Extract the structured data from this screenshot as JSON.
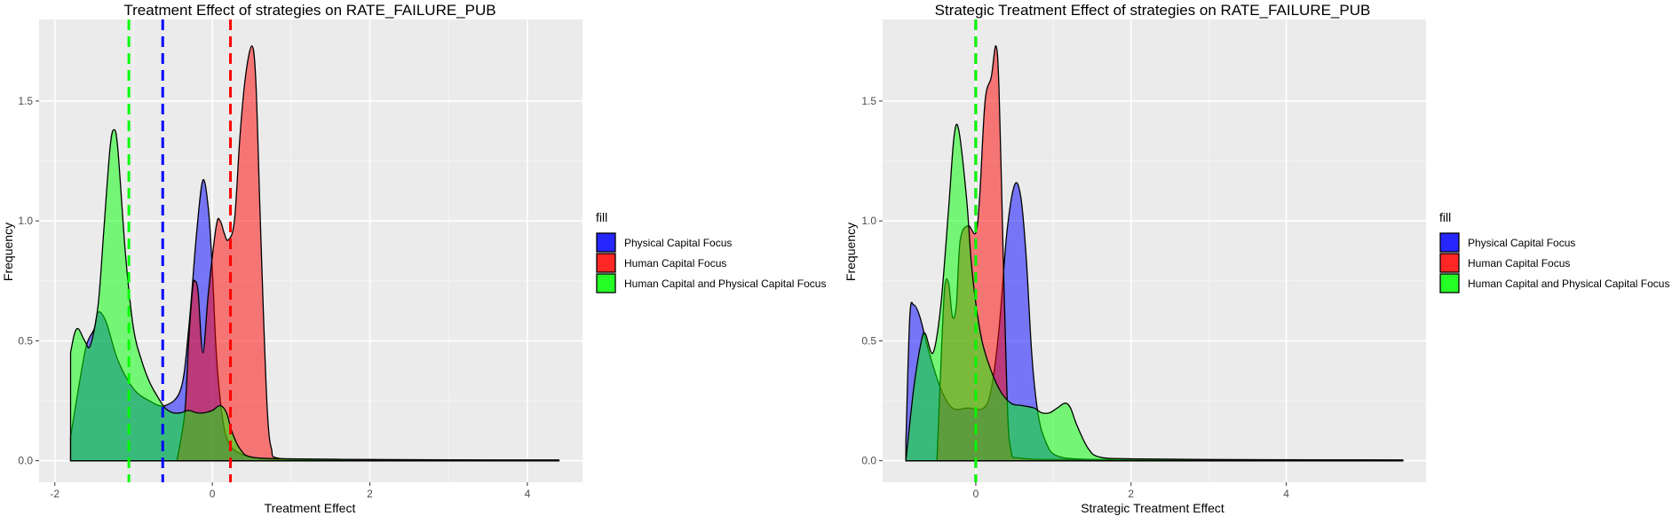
{
  "chart_data": [
    {
      "type": "area",
      "title": "Treatment Effect of strategies on RATE_FAILURE_PUB",
      "xlabel": "Treatment Effect",
      "ylabel": "Frequency",
      "xlim": [
        -2.2,
        4.7
      ],
      "ylim": [
        -0.09,
        1.84
      ],
      "x_ticks": [
        -2,
        0,
        2,
        4
      ],
      "y_ticks": [
        0.0,
        0.5,
        1.0,
        1.5
      ],
      "x_tick_labels": [
        "-2",
        "0",
        "2",
        "4"
      ],
      "y_tick_labels": [
        "0.0",
        "0.5",
        "1.0",
        "1.5"
      ],
      "grid": true,
      "legend_title": "fill",
      "legend_position": "right",
      "series": [
        {
          "name": "Physical Capital Focus",
          "color": "#0000ff",
          "mean": -0.63,
          "points": [
            [
              -1.8,
              0.1
            ],
            [
              -1.7,
              0.3
            ],
            [
              -1.6,
              0.48
            ],
            [
              -1.5,
              0.55
            ],
            [
              -1.45,
              0.62
            ],
            [
              -1.35,
              0.58
            ],
            [
              -1.2,
              0.42
            ],
            [
              -1.0,
              0.3
            ],
            [
              -0.8,
              0.25
            ],
            [
              -0.6,
              0.23
            ],
            [
              -0.4,
              0.3
            ],
            [
              -0.3,
              0.55
            ],
            [
              -0.2,
              0.95
            ],
            [
              -0.12,
              1.17
            ],
            [
              -0.05,
              1.05
            ],
            [
              0.0,
              0.8
            ],
            [
              0.05,
              0.45
            ],
            [
              0.12,
              0.2
            ],
            [
              0.2,
              0.08
            ],
            [
              0.35,
              0.03
            ],
            [
              0.6,
              0.01
            ],
            [
              1.0,
              0.005
            ],
            [
              2.0,
              0.003
            ],
            [
              3.0,
              0.002
            ],
            [
              4.4,
              0.002
            ]
          ]
        },
        {
          "name": "Human Capital Focus",
          "color": "#ff0000",
          "mean": 0.23,
          "points": [
            [
              -0.45,
              0.0
            ],
            [
              -0.35,
              0.2
            ],
            [
              -0.3,
              0.5
            ],
            [
              -0.25,
              0.72
            ],
            [
              -0.22,
              0.75
            ],
            [
              -0.18,
              0.7
            ],
            [
              -0.12,
              0.45
            ],
            [
              -0.05,
              0.7
            ],
            [
              0.05,
              0.98
            ],
            [
              0.1,
              1.0
            ],
            [
              0.15,
              0.95
            ],
            [
              0.2,
              0.92
            ],
            [
              0.28,
              1.0
            ],
            [
              0.35,
              1.35
            ],
            [
              0.42,
              1.6
            ],
            [
              0.5,
              1.73
            ],
            [
              0.55,
              1.6
            ],
            [
              0.6,
              1.1
            ],
            [
              0.65,
              0.6
            ],
            [
              0.7,
              0.2
            ],
            [
              0.75,
              0.05
            ],
            [
              0.85,
              0.01
            ],
            [
              1.5,
              0.005
            ],
            [
              2.5,
              0.003
            ],
            [
              3.5,
              0.002
            ],
            [
              4.4,
              0.002
            ]
          ]
        },
        {
          "name": "Human Capital and Physical Capital Focus",
          "color": "#00ff00",
          "mean": -1.06,
          "points": [
            [
              -1.8,
              0.45
            ],
            [
              -1.75,
              0.53
            ],
            [
              -1.7,
              0.55
            ],
            [
              -1.62,
              0.5
            ],
            [
              -1.55,
              0.48
            ],
            [
              -1.45,
              0.65
            ],
            [
              -1.38,
              0.95
            ],
            [
              -1.3,
              1.3
            ],
            [
              -1.25,
              1.38
            ],
            [
              -1.2,
              1.3
            ],
            [
              -1.1,
              0.85
            ],
            [
              -1.0,
              0.55
            ],
            [
              -0.9,
              0.42
            ],
            [
              -0.8,
              0.33
            ],
            [
              -0.7,
              0.27
            ],
            [
              -0.6,
              0.22
            ],
            [
              -0.5,
              0.2
            ],
            [
              -0.4,
              0.2
            ],
            [
              -0.3,
              0.21
            ],
            [
              -0.2,
              0.2
            ],
            [
              -0.1,
              0.2
            ],
            [
              0.0,
              0.21
            ],
            [
              0.1,
              0.23
            ],
            [
              0.18,
              0.2
            ],
            [
              0.25,
              0.12
            ],
            [
              0.35,
              0.05
            ],
            [
              0.5,
              0.015
            ],
            [
              1.0,
              0.008
            ],
            [
              2.0,
              0.005
            ],
            [
              3.0,
              0.004
            ],
            [
              4.4,
              0.003
            ]
          ]
        }
      ]
    },
    {
      "type": "area",
      "title": "Strategic Treatment Effect of strategies on RATE_FAILURE_PUB",
      "xlabel": "Strategic Treatment Effect",
      "ylabel": "Frequency",
      "xlim": [
        -1.2,
        5.8
      ],
      "ylim": [
        -0.09,
        1.84
      ],
      "x_ticks": [
        0,
        2,
        4
      ],
      "y_ticks": [
        0.0,
        0.5,
        1.0,
        1.5
      ],
      "x_tick_labels": [
        "0",
        "2",
        "4"
      ],
      "y_tick_labels": [
        "0.0",
        "0.5",
        "1.0",
        "1.5"
      ],
      "grid": true,
      "legend_title": "fill",
      "legend_position": "right",
      "series": [
        {
          "name": "Physical Capital Focus",
          "color": "#0000ff",
          "mean": 0.0,
          "points": [
            [
              -0.9,
              0.08
            ],
            [
              -0.85,
              0.6
            ],
            [
              -0.8,
              0.65
            ],
            [
              -0.72,
              0.6
            ],
            [
              -0.6,
              0.45
            ],
            [
              -0.45,
              0.3
            ],
            [
              -0.3,
              0.22
            ],
            [
              -0.1,
              0.22
            ],
            [
              0.1,
              0.22
            ],
            [
              0.2,
              0.3
            ],
            [
              0.3,
              0.55
            ],
            [
              0.4,
              0.95
            ],
            [
              0.5,
              1.15
            ],
            [
              0.58,
              1.1
            ],
            [
              0.65,
              0.85
            ],
            [
              0.72,
              0.45
            ],
            [
              0.8,
              0.2
            ],
            [
              0.9,
              0.08
            ],
            [
              1.05,
              0.02
            ],
            [
              1.5,
              0.005
            ],
            [
              2.5,
              0.003
            ],
            [
              3.5,
              0.002
            ],
            [
              4.5,
              0.002
            ],
            [
              5.5,
              0.002
            ]
          ]
        },
        {
          "name": "Human Capital Focus",
          "color": "#ff0000",
          "mean": 0.0,
          "points": [
            [
              -0.5,
              0.0
            ],
            [
              -0.45,
              0.4
            ],
            [
              -0.4,
              0.72
            ],
            [
              -0.35,
              0.74
            ],
            [
              -0.3,
              0.6
            ],
            [
              -0.25,
              0.65
            ],
            [
              -0.2,
              0.92
            ],
            [
              -0.1,
              0.98
            ],
            [
              0.0,
              0.95
            ],
            [
              0.05,
              1.1
            ],
            [
              0.12,
              1.5
            ],
            [
              0.2,
              1.6
            ],
            [
              0.26,
              1.73
            ],
            [
              0.3,
              1.55
            ],
            [
              0.35,
              0.9
            ],
            [
              0.4,
              0.3
            ],
            [
              0.45,
              0.05
            ],
            [
              0.6,
              0.01
            ],
            [
              1.5,
              0.005
            ],
            [
              3.0,
              0.003
            ],
            [
              5.5,
              0.002
            ]
          ]
        },
        {
          "name": "Human Capital and Physical Capital Focus",
          "color": "#00ff00",
          "mean": 0.0,
          "points": [
            [
              -0.9,
              0.0
            ],
            [
              -0.8,
              0.3
            ],
            [
              -0.7,
              0.5
            ],
            [
              -0.65,
              0.53
            ],
            [
              -0.55,
              0.45
            ],
            [
              -0.45,
              0.65
            ],
            [
              -0.35,
              1.05
            ],
            [
              -0.28,
              1.35
            ],
            [
              -0.22,
              1.38
            ],
            [
              -0.12,
              1.1
            ],
            [
              -0.05,
              0.8
            ],
            [
              0.05,
              0.55
            ],
            [
              0.15,
              0.42
            ],
            [
              0.3,
              0.3
            ],
            [
              0.45,
              0.24
            ],
            [
              0.6,
              0.23
            ],
            [
              0.75,
              0.22
            ],
            [
              0.85,
              0.2
            ],
            [
              0.95,
              0.2
            ],
            [
              1.05,
              0.22
            ],
            [
              1.15,
              0.24
            ],
            [
              1.22,
              0.22
            ],
            [
              1.3,
              0.15
            ],
            [
              1.45,
              0.05
            ],
            [
              1.6,
              0.015
            ],
            [
              2.0,
              0.008
            ],
            [
              3.0,
              0.005
            ],
            [
              4.5,
              0.004
            ],
            [
              5.5,
              0.003
            ]
          ]
        }
      ]
    }
  ]
}
